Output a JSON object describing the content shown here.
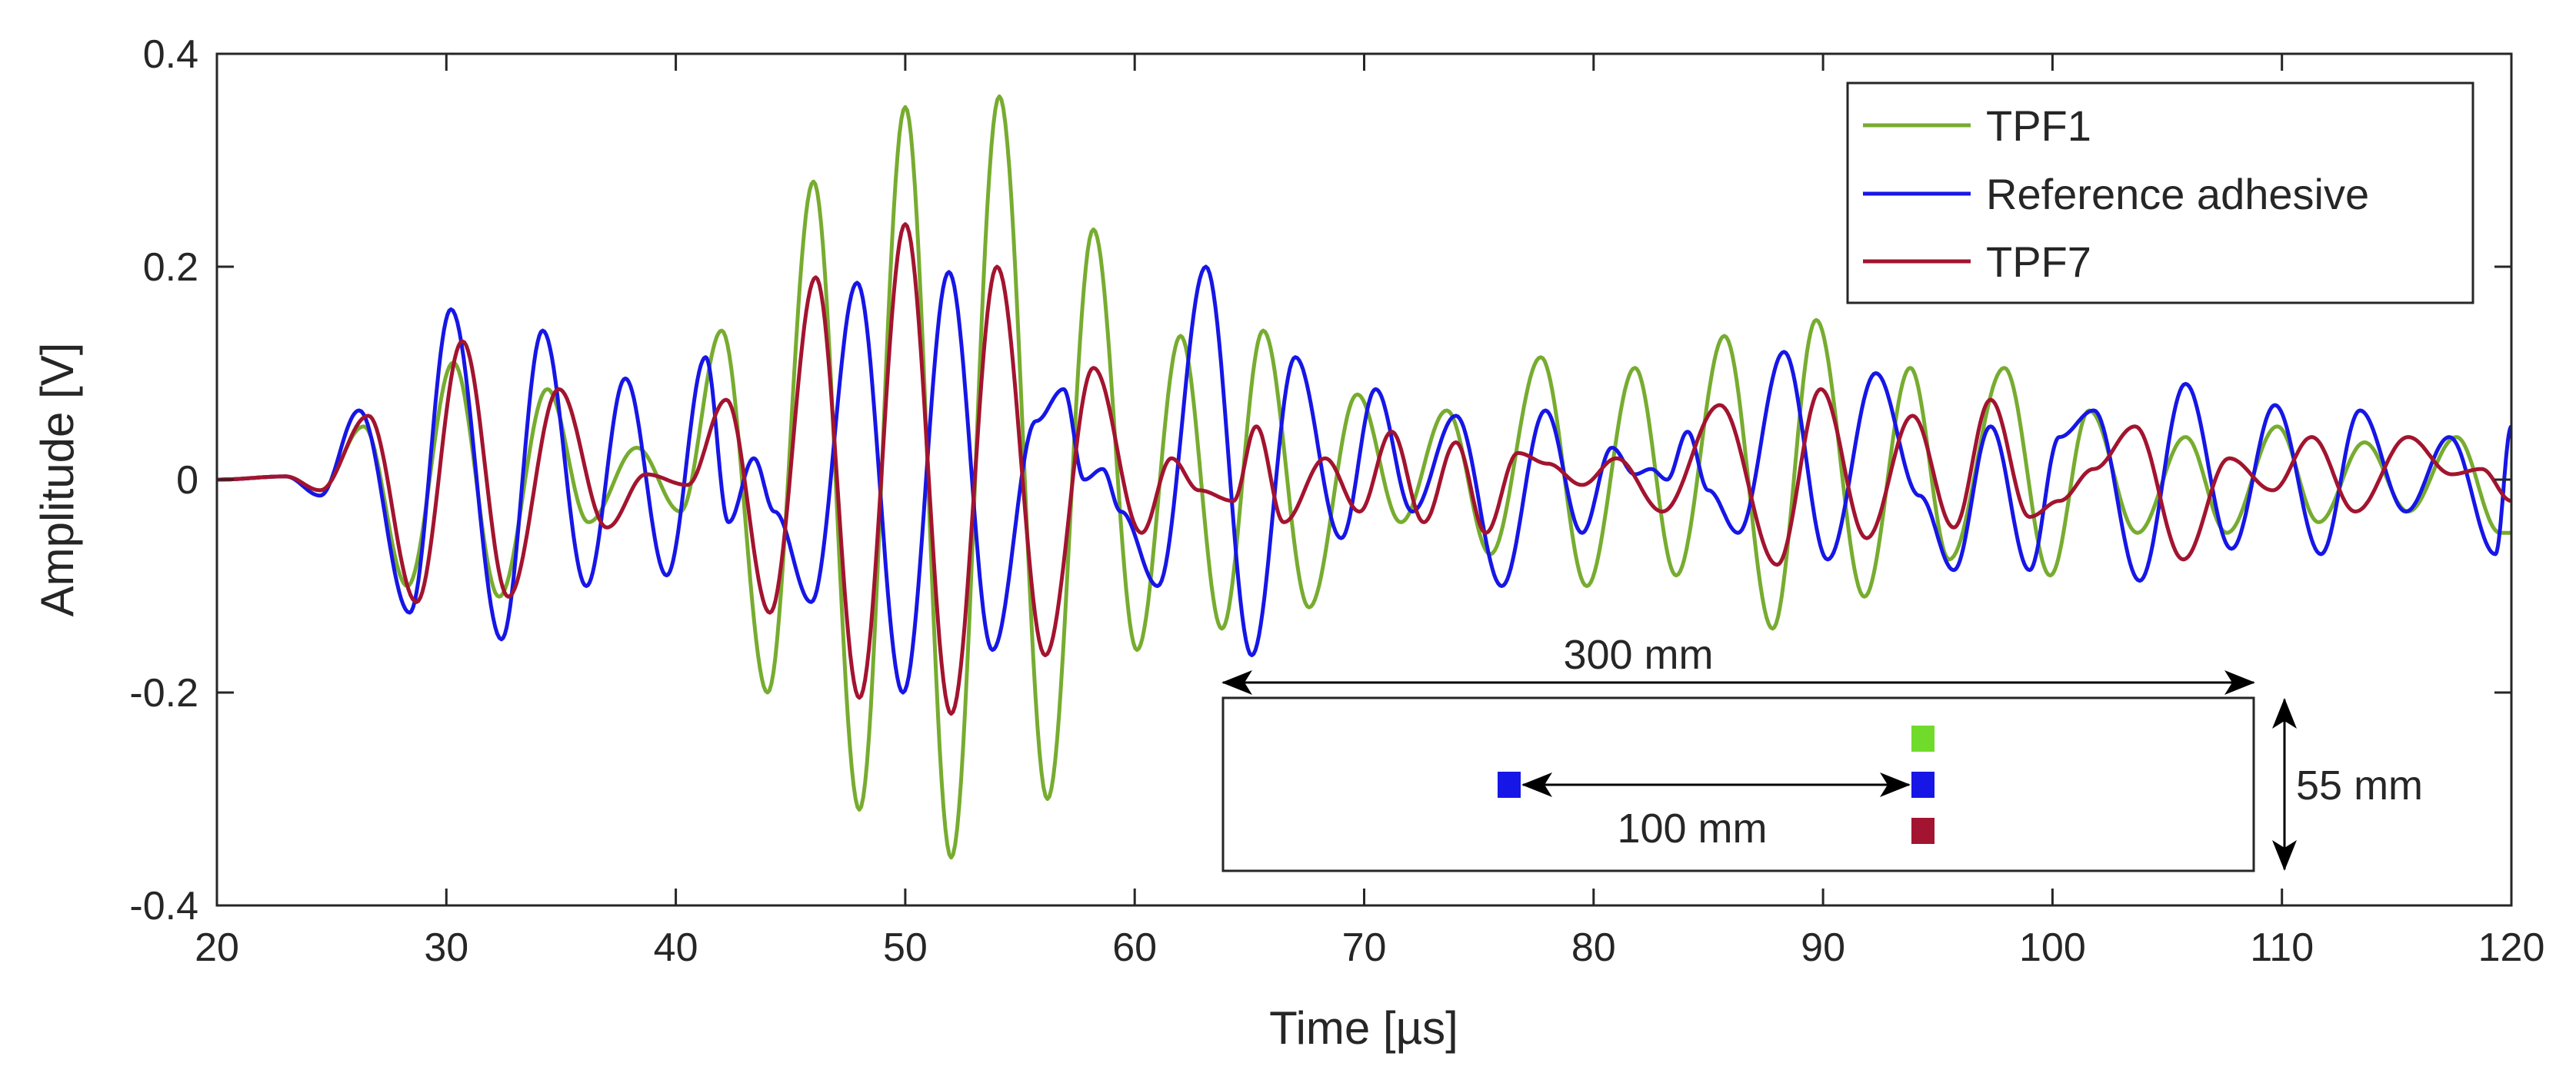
{
  "chart_data": {
    "type": "line",
    "title": "",
    "xlabel": "Time [µs]",
    "ylabel": "Amplitude [V]",
    "xlim": [
      20,
      120
    ],
    "ylim": [
      -0.4,
      0.4
    ],
    "xticks": [
      20,
      30,
      40,
      50,
      60,
      70,
      80,
      90,
      100,
      110,
      120
    ],
    "xtick_labels": [
      "20",
      "30",
      "40",
      "50",
      "60",
      "70",
      "80",
      "90",
      "100",
      "110",
      "120"
    ],
    "yticks": [
      -0.4,
      -0.2,
      0,
      0.2,
      0.4
    ],
    "ytick_labels": [
      "-0.4",
      "-0.2",
      "0",
      "0.2",
      "0.4"
    ],
    "grid": false,
    "legend_position": "top-right",
    "series": [
      {
        "name": "TPF1",
        "color": "#77ac30",
        "x": [
          20,
          23,
          24.5,
          26.4,
          28.3,
          30.3,
          32.3,
          34.4,
          36.2,
          38.3,
          40.2,
          42,
          44,
          46,
          48,
          50,
          52,
          54.1,
          56.2,
          58.2,
          60.1,
          62,
          63.8,
          65.6,
          67.6,
          69.7,
          71.6,
          73.6,
          75.5,
          77.7,
          79.7,
          81.8,
          83.6,
          85.7,
          87.8,
          89.7,
          91.8,
          93.8,
          95.5,
          97.9,
          99.9,
          101.6,
          103.7,
          105.8,
          107.6,
          109.8,
          111.6,
          113.6,
          115.5,
          117.6,
          119.5,
          120
        ],
        "y": [
          0,
          0.003,
          -0.01,
          0.05,
          -0.1,
          0.11,
          -0.11,
          0.085,
          -0.04,
          0.03,
          -0.03,
          0.14,
          -0.2,
          0.28,
          -0.31,
          0.35,
          -0.355,
          0.36,
          -0.3,
          0.235,
          -0.16,
          0.135,
          -0.14,
          0.14,
          -0.12,
          0.08,
          -0.04,
          0.065,
          -0.07,
          0.115,
          -0.1,
          0.105,
          -0.09,
          0.135,
          -0.14,
          0.15,
          -0.11,
          0.105,
          -0.075,
          0.105,
          -0.09,
          0.065,
          -0.05,
          0.04,
          -0.05,
          0.05,
          -0.04,
          0.035,
          -0.03,
          0.04,
          -0.05,
          -0.05
        ]
      },
      {
        "name": "Reference adhesive",
        "color": "#1616e6",
        "x": [
          20,
          23,
          24.5,
          26.2,
          28.4,
          30.2,
          32.4,
          34.2,
          36.1,
          37.8,
          39.6,
          41.3,
          42.3,
          43.4,
          44.3,
          45.9,
          47.9,
          49.9,
          51.9,
          53.8,
          55.7,
          56.9,
          57.8,
          58.6,
          59.4,
          61,
          63.1,
          65.1,
          67,
          69,
          70.5,
          72.1,
          74,
          76,
          77.9,
          79.5,
          80.8,
          81.8,
          82.5,
          83.2,
          84.1,
          85,
          86.3,
          88.3,
          90.2,
          92.3,
          94.2,
          95.7,
          97.3,
          99,
          100.3,
          101.8,
          103.8,
          105.8,
          107.8,
          109.7,
          111.7,
          113.4,
          115.4,
          117.3,
          119.3,
          120
        ],
        "y": [
          0,
          0.003,
          -0.015,
          0.065,
          -0.125,
          0.16,
          -0.15,
          0.14,
          -0.1,
          0.095,
          -0.09,
          0.115,
          -0.04,
          0.02,
          -0.03,
          -0.115,
          0.185,
          -0.2,
          0.195,
          -0.16,
          0.055,
          0.085,
          0,
          0.01,
          -0.03,
          -0.1,
          0.2,
          -0.165,
          0.115,
          -0.055,
          0.085,
          -0.03,
          0.06,
          -0.1,
          0.065,
          -0.05,
          0.03,
          0.005,
          0.01,
          0,
          0.045,
          -0.01,
          -0.05,
          0.12,
          -0.075,
          0.1,
          -0.015,
          -0.085,
          0.05,
          -0.085,
          0.04,
          0.065,
          -0.095,
          0.09,
          -0.065,
          0.07,
          -0.07,
          0.065,
          -0.03,
          0.04,
          -0.07,
          0.05
        ]
      },
      {
        "name": "TPF7",
        "color": "#a2142f",
        "x": [
          20,
          23,
          24.5,
          26.6,
          28.7,
          30.7,
          32.7,
          34.9,
          37,
          38.7,
          40.5,
          42.2,
          44.1,
          46.1,
          48,
          50,
          52,
          54,
          56.1,
          58.2,
          60.3,
          61.6,
          62.8,
          64.3,
          65.3,
          66.5,
          68.3,
          69.8,
          71.2,
          72.6,
          74,
          75.3,
          76.7,
          78,
          79.5,
          81,
          83,
          85.5,
          88,
          89.9,
          91.9,
          93.9,
          95.7,
          97.3,
          99,
          100.3,
          101.8,
          103.6,
          105.7,
          107.7,
          109.6,
          111.3,
          113.2,
          115.5,
          117.4,
          118.7,
          120
        ],
        "y": [
          0,
          0.003,
          -0.01,
          0.06,
          -0.115,
          0.13,
          -0.11,
          0.085,
          -0.045,
          0.005,
          -0.005,
          0.075,
          -0.125,
          0.19,
          -0.205,
          0.24,
          -0.22,
          0.2,
          -0.165,
          0.105,
          -0.05,
          0.02,
          -0.01,
          -0.02,
          0.05,
          -0.04,
          0.02,
          -0.03,
          0.045,
          -0.04,
          0.035,
          -0.05,
          0.025,
          0.015,
          -0.005,
          0.02,
          -0.03,
          0.07,
          -0.08,
          0.085,
          -0.055,
          0.06,
          -0.045,
          0.075,
          -0.035,
          -0.02,
          0.01,
          0.05,
          -0.075,
          0.02,
          -0.01,
          0.04,
          -0.03,
          0.04,
          0.005,
          0.01,
          -0.02
        ]
      }
    ],
    "inset": {
      "length_label": "300 mm",
      "width_label": "55 mm",
      "distance_label": "100 mm",
      "sensor_colors": [
        "#70db2b",
        "#1616e6",
        "#a2142f"
      ],
      "actuator_color": "#1616e6"
    }
  }
}
